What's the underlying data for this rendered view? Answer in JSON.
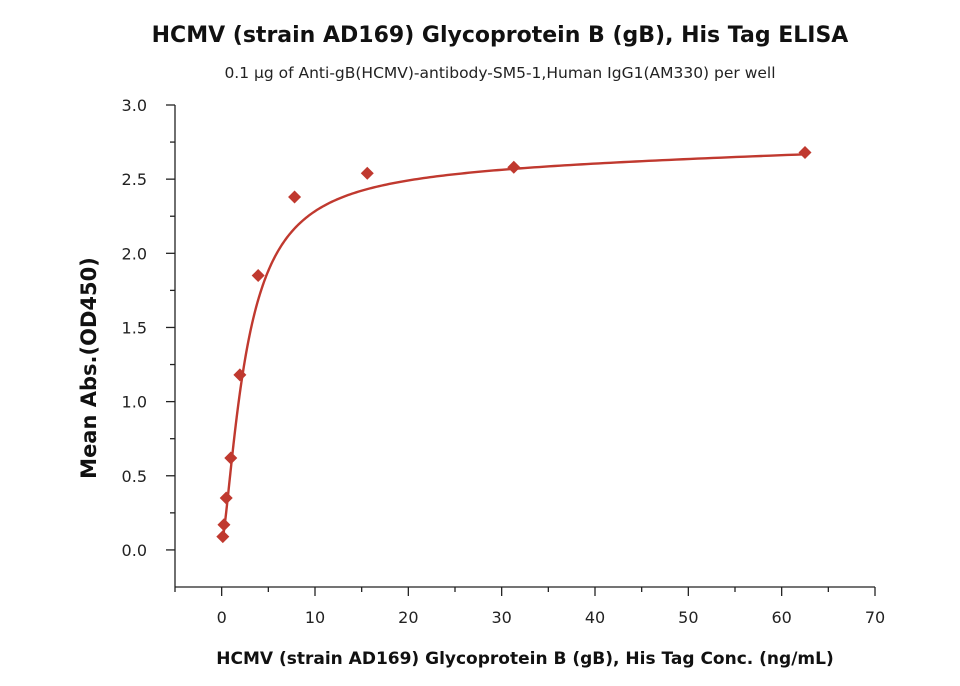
{
  "chart_data": {
    "type": "scatter",
    "title": "HCMV (strain AD169) Glycoprotein B (gB), His Tag ELISA",
    "subtitle": "0.1 µg of Anti-gB(HCMV)-antibody-SM5-1,Human IgG1(AM330) per well",
    "xlabel": "HCMV (strain AD169) Glycoprotein B (gB), His Tag Conc. (ng/mL)",
    "ylabel": "Mean Abs.(OD450)",
    "xlim": [
      -5,
      70
    ],
    "ylim": [
      -0.25,
      3.0
    ],
    "xticks": [
      "0",
      "10",
      "20",
      "30",
      "40",
      "50",
      "60",
      "70"
    ],
    "yticks": [
      "0.0",
      "0.5",
      "1.0",
      "1.5",
      "2.0",
      "2.5",
      "3.0"
    ],
    "grid": false,
    "series": [
      {
        "x": [
          0.122,
          0.244,
          0.488,
          0.977,
          1.95,
          3.91,
          7.81,
          15.6,
          31.3,
          62.5
        ],
        "y": [
          0.09,
          0.17,
          0.35,
          0.62,
          1.18,
          1.85,
          2.38,
          2.54,
          2.58,
          2.68
        ],
        "fit": "4PL"
      }
    ],
    "colors": {
      "series": "#c0392f",
      "axis": "#222222"
    }
  }
}
